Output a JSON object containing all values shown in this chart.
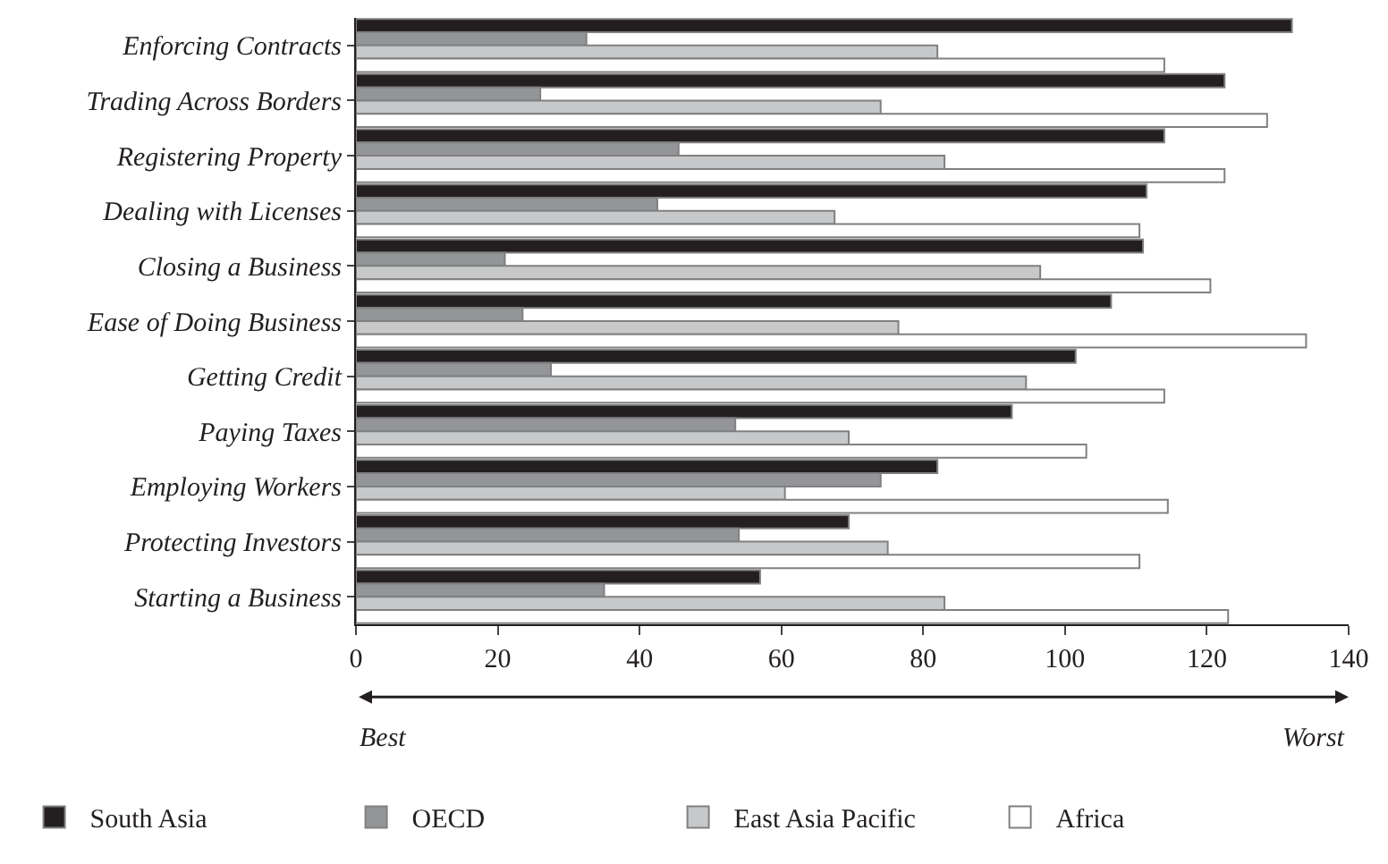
{
  "chart_data": {
    "type": "bar",
    "orientation": "horizontal",
    "categories": [
      "Enforcing Contracts",
      "Trading Across Borders",
      "Registering Property",
      "Dealing with Licenses",
      "Closing a Business",
      "Ease of Doing Business",
      "Getting Credit",
      "Paying Taxes",
      "Employing Workers",
      "Protecting Investors",
      "Starting a Business"
    ],
    "series": [
      {
        "name": "South Asia",
        "color": "#231f20",
        "values": [
          132,
          122.5,
          114,
          111.5,
          111,
          106.5,
          101.5,
          92.5,
          82,
          69.5,
          57
        ]
      },
      {
        "name": "OECD",
        "color": "#939598",
        "values": [
          32.5,
          26,
          45.5,
          42.5,
          21,
          23.5,
          27.5,
          53.5,
          74,
          54,
          35
        ]
      },
      {
        "name": "East Asia Pacific",
        "color": "#c7c8ca",
        "values": [
          82,
          74,
          83,
          67.5,
          96.5,
          76.5,
          94.5,
          69.5,
          60.5,
          75,
          83
        ]
      },
      {
        "name": "Africa",
        "color": "#ffffff",
        "values": [
          114,
          128.5,
          122.5,
          110.5,
          120.5,
          134,
          114,
          103,
          114.5,
          110.5,
          123
        ]
      }
    ],
    "xlim": [
      0,
      140
    ],
    "xticks": [
      0,
      20,
      40,
      60,
      80,
      100,
      120,
      140
    ],
    "annotations": [
      "Best",
      "Worst"
    ],
    "legend": "bottom"
  }
}
